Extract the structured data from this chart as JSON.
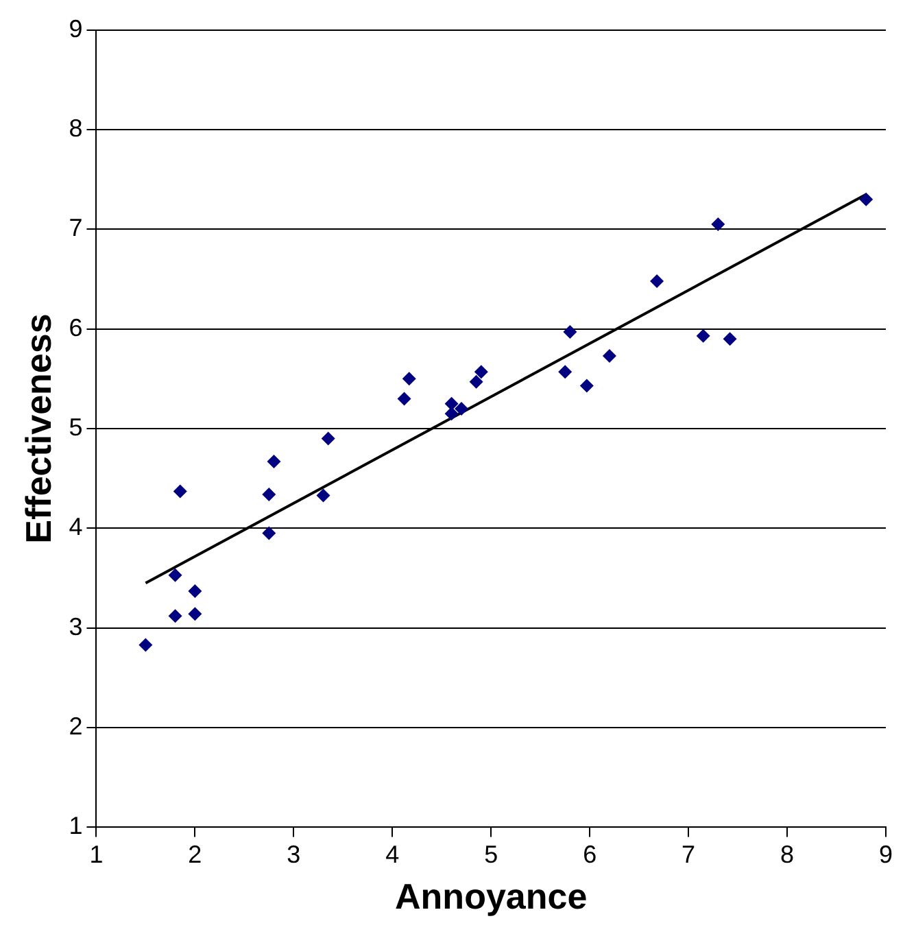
{
  "chart_data": {
    "type": "scatter",
    "xlabel": "Annoyance",
    "ylabel": "Effectiveness",
    "xlim": [
      1,
      9
    ],
    "xticks": [
      1,
      2,
      3,
      4,
      5,
      6,
      7,
      8,
      9
    ],
    "ylim": [
      1,
      9
    ],
    "yticks": [
      1,
      2,
      3,
      4,
      5,
      6,
      7,
      8,
      9
    ],
    "grid": "y",
    "legend": false,
    "marker": "diamond",
    "series": [
      {
        "type": "scatter",
        "color": "#000080",
        "x": [
          1.5,
          1.8,
          1.8,
          1.85,
          2.0,
          2.0,
          2.75,
          2.75,
          2.8,
          3.3,
          3.35,
          4.12,
          4.17,
          4.6,
          4.6,
          4.7,
          4.85,
          4.9,
          5.75,
          5.8,
          5.97,
          6.2,
          6.68,
          7.15,
          7.3,
          7.42,
          8.8
        ],
        "values": [
          2.83,
          3.53,
          3.12,
          4.37,
          3.37,
          3.14,
          4.34,
          3.95,
          4.67,
          4.33,
          4.9,
          5.3,
          5.5,
          5.15,
          5.25,
          5.2,
          5.47,
          5.57,
          5.57,
          5.97,
          5.43,
          5.73,
          6.48,
          5.93,
          7.05,
          5.9,
          7.3
        ]
      },
      {
        "type": "line",
        "color": "#000000",
        "marker": "none",
        "x": [
          1.5,
          8.8
        ],
        "values": [
          3.45,
          7.35
        ]
      }
    ]
  }
}
